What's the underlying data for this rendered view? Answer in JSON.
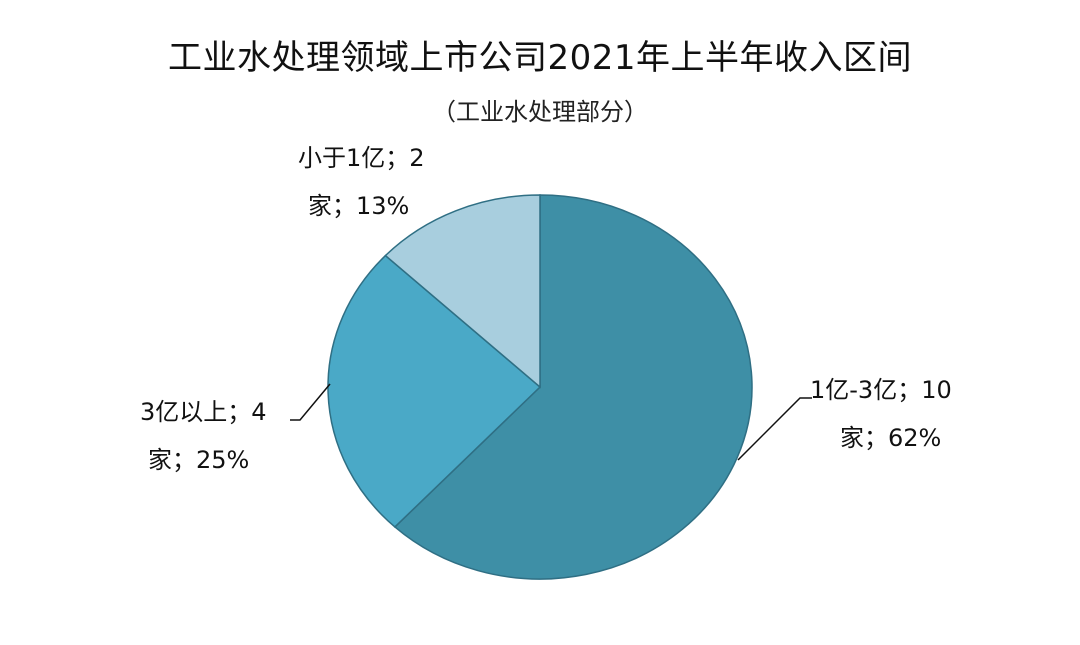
{
  "chart_data": {
    "type": "pie",
    "title": "工业水处理领域上市公司2021年上半年收入区间",
    "subtitle": "（工业水处理部分）",
    "slices": [
      {
        "name": "1亿-3亿",
        "count": 10,
        "unit": "家",
        "percent": 62,
        "color": "#3e8fa6",
        "label_lines": [
          "1亿-3亿；10",
          "家；62%"
        ]
      },
      {
        "name": "3亿以上",
        "count": 4,
        "unit": "家",
        "percent": 25,
        "color": "#4aa9c7",
        "label_lines": [
          "3亿以上；4",
          "家；25%"
        ]
      },
      {
        "name": "小于1亿",
        "count": 2,
        "unit": "家",
        "percent": 13,
        "color": "#a8cede",
        "label_lines": [
          "小于1亿；2",
          "家；13%"
        ]
      }
    ],
    "legend": "none",
    "data_labels": "outside-with-leader-lines"
  }
}
